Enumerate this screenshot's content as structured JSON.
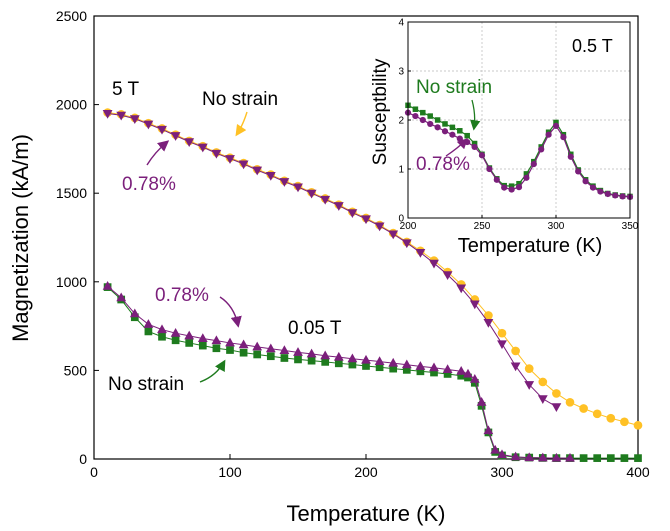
{
  "chart_data": [
    {
      "type": "scatter",
      "xlabel": "Temperature (K)",
      "ylabel": "Magnetization (kA/m)",
      "xlim": [
        0,
        400
      ],
      "ylim": [
        0,
        2500
      ],
      "xticks": [
        "0",
        "100",
        "200",
        "300",
        "400"
      ],
      "yticks": [
        "0",
        "500",
        "1000",
        "1500",
        "2000",
        "2500"
      ],
      "grid": false,
      "annotations": {
        "field_5T": "5 T",
        "field_005T": "0.05 T",
        "no_strain_top": "No strain",
        "strain_top": "0.78%",
        "strain_bottom": "0.78%",
        "no_strain_bottom": "No strain"
      },
      "series": [
        {
          "name": "No strain",
          "field": "5 T",
          "color": "#FFC125",
          "marker": "circle",
          "x": [
            10,
            20,
            30,
            40,
            50,
            60,
            70,
            80,
            90,
            100,
            110,
            120,
            130,
            140,
            150,
            160,
            170,
            180,
            190,
            200,
            210,
            220,
            230,
            240,
            250,
            260,
            270,
            280,
            290,
            300,
            310,
            320,
            330,
            340,
            350,
            360,
            370,
            380,
            390,
            400
          ],
          "y": [
            1955,
            1945,
            1925,
            1895,
            1865,
            1830,
            1795,
            1765,
            1730,
            1700,
            1670,
            1635,
            1605,
            1570,
            1540,
            1505,
            1470,
            1435,
            1395,
            1360,
            1320,
            1275,
            1225,
            1175,
            1120,
            1055,
            985,
            900,
            810,
            710,
            610,
            510,
            435,
            370,
            320,
            285,
            255,
            230,
            210,
            190
          ]
        },
        {
          "name": "0.78%",
          "field": "5 T",
          "color": "#7B1F7B",
          "marker": "triangle-down",
          "x": [
            10,
            20,
            30,
            40,
            50,
            60,
            70,
            80,
            90,
            100,
            110,
            120,
            130,
            140,
            150,
            160,
            170,
            180,
            190,
            200,
            210,
            220,
            230,
            240,
            250,
            260,
            270,
            280,
            290,
            300,
            310,
            320,
            330,
            340
          ],
          "y": [
            1950,
            1940,
            1920,
            1890,
            1860,
            1825,
            1790,
            1760,
            1725,
            1695,
            1665,
            1630,
            1600,
            1565,
            1535,
            1500,
            1465,
            1430,
            1390,
            1355,
            1315,
            1270,
            1220,
            1165,
            1105,
            1040,
            965,
            875,
            770,
            650,
            525,
            420,
            340,
            295
          ]
        },
        {
          "name": "No strain",
          "field": "0.05 T",
          "color": "#1E7B1E",
          "marker": "square",
          "x": [
            10,
            20,
            30,
            40,
            50,
            60,
            70,
            80,
            90,
            100,
            110,
            120,
            130,
            140,
            150,
            160,
            170,
            180,
            190,
            200,
            210,
            220,
            230,
            240,
            250,
            260,
            270,
            275,
            280,
            285,
            290,
            295,
            300,
            310,
            320,
            330,
            340,
            350,
            360,
            370,
            380,
            390,
            400
          ],
          "y": [
            970,
            900,
            800,
            720,
            690,
            670,
            655,
            640,
            625,
            615,
            600,
            590,
            580,
            570,
            562,
            555,
            548,
            540,
            533,
            525,
            518,
            510,
            503,
            495,
            488,
            480,
            470,
            460,
            430,
            300,
            150,
            40,
            20,
            10,
            8,
            6,
            5,
            5,
            5,
            5,
            5,
            5,
            5
          ]
        },
        {
          "name": "0.78%",
          "field": "0.05 T",
          "color": "#7B1F7B",
          "marker": "triangle-up",
          "x": [
            10,
            20,
            30,
            40,
            50,
            60,
            70,
            80,
            90,
            100,
            110,
            120,
            130,
            140,
            150,
            160,
            170,
            180,
            190,
            200,
            210,
            220,
            230,
            240,
            250,
            260,
            270,
            275,
            280,
            285,
            290,
            295,
            300,
            310,
            320,
            330,
            340,
            350
          ],
          "y": [
            975,
            910,
            820,
            760,
            730,
            710,
            695,
            680,
            668,
            655,
            645,
            633,
            622,
            612,
            602,
            593,
            583,
            575,
            566,
            558,
            550,
            541,
            532,
            523,
            515,
            505,
            495,
            480,
            450,
            320,
            160,
            50,
            25,
            12,
            8,
            6,
            5,
            5
          ]
        }
      ]
    },
    {
      "type": "line",
      "inset": true,
      "xlabel": "Temperature (K)",
      "ylabel": "Susceptbility",
      "xlim": [
        200,
        350
      ],
      "ylim": [
        0,
        4
      ],
      "xticks": [
        "200",
        "250",
        "300",
        "350"
      ],
      "yticks": [
        "0",
        "1",
        "2",
        "3",
        "4"
      ],
      "grid": true,
      "annotations": {
        "field": "0.5 T",
        "no_strain": "No strain",
        "strain": "0.78%"
      },
      "series": [
        {
          "name": "No strain",
          "color": "#1E7B1E",
          "marker": "square",
          "x": [
            200,
            205,
            210,
            215,
            220,
            225,
            230,
            235,
            240,
            245,
            250,
            255,
            260,
            265,
            270,
            275,
            280,
            285,
            290,
            295,
            300,
            305,
            310,
            315,
            320,
            325,
            330,
            335,
            340,
            345,
            350
          ],
          "y": [
            2.3,
            2.22,
            2.15,
            2.08,
            2.0,
            1.92,
            1.85,
            1.78,
            1.68,
            1.52,
            1.3,
            1.02,
            0.8,
            0.66,
            0.65,
            0.7,
            0.9,
            1.15,
            1.45,
            1.75,
            1.95,
            1.7,
            1.3,
            0.98,
            0.78,
            0.65,
            0.56,
            0.5,
            0.47,
            0.45,
            0.44
          ]
        },
        {
          "name": "0.78%",
          "color": "#7B1F7B",
          "marker": "circle",
          "x": [
            200,
            205,
            210,
            215,
            220,
            225,
            230,
            235,
            240,
            245,
            250,
            255,
            260,
            265,
            270,
            275,
            280,
            285,
            290,
            295,
            300,
            305,
            310,
            315,
            320,
            325,
            330,
            335,
            340,
            345,
            350
          ],
          "y": [
            2.15,
            2.08,
            2.0,
            1.92,
            1.85,
            1.77,
            1.7,
            1.62,
            1.55,
            1.45,
            1.28,
            1.0,
            0.78,
            0.62,
            0.58,
            0.63,
            0.82,
            1.1,
            1.4,
            1.7,
            1.88,
            1.65,
            1.25,
            0.95,
            0.75,
            0.62,
            0.54,
            0.49,
            0.46,
            0.44,
            0.43
          ]
        }
      ]
    }
  ]
}
